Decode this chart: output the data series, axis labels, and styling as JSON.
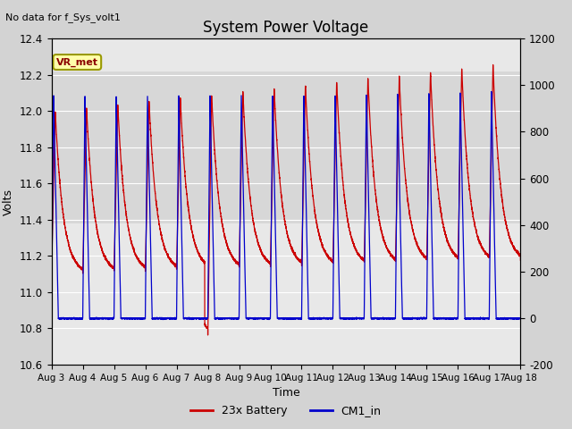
{
  "title": "System Power Voltage",
  "xlabel": "Time",
  "ylabel_left": "Volts",
  "no_data_text": "No data for f_Sys_volt1",
  "annotation_text": "VR_met",
  "ylim_left": [
    10.6,
    12.4
  ],
  "ylim_right": [
    -200,
    1200
  ],
  "yticks_left": [
    10.6,
    10.8,
    11.0,
    11.2,
    11.4,
    11.6,
    11.8,
    12.0,
    12.2,
    12.4
  ],
  "yticks_right": [
    -200,
    0,
    200,
    400,
    600,
    800,
    1000,
    1200
  ],
  "background_color": "#d3d3d3",
  "plot_bg_color": "#e8e8e8",
  "shaded_bg_color": "#d0d0d0",
  "line1_color": "#cc0000",
  "line2_color": "#0000cc",
  "legend1": "23x Battery",
  "legend2": "CM1_in",
  "figsize": [
    6.4,
    4.8
  ],
  "dpi": 100
}
